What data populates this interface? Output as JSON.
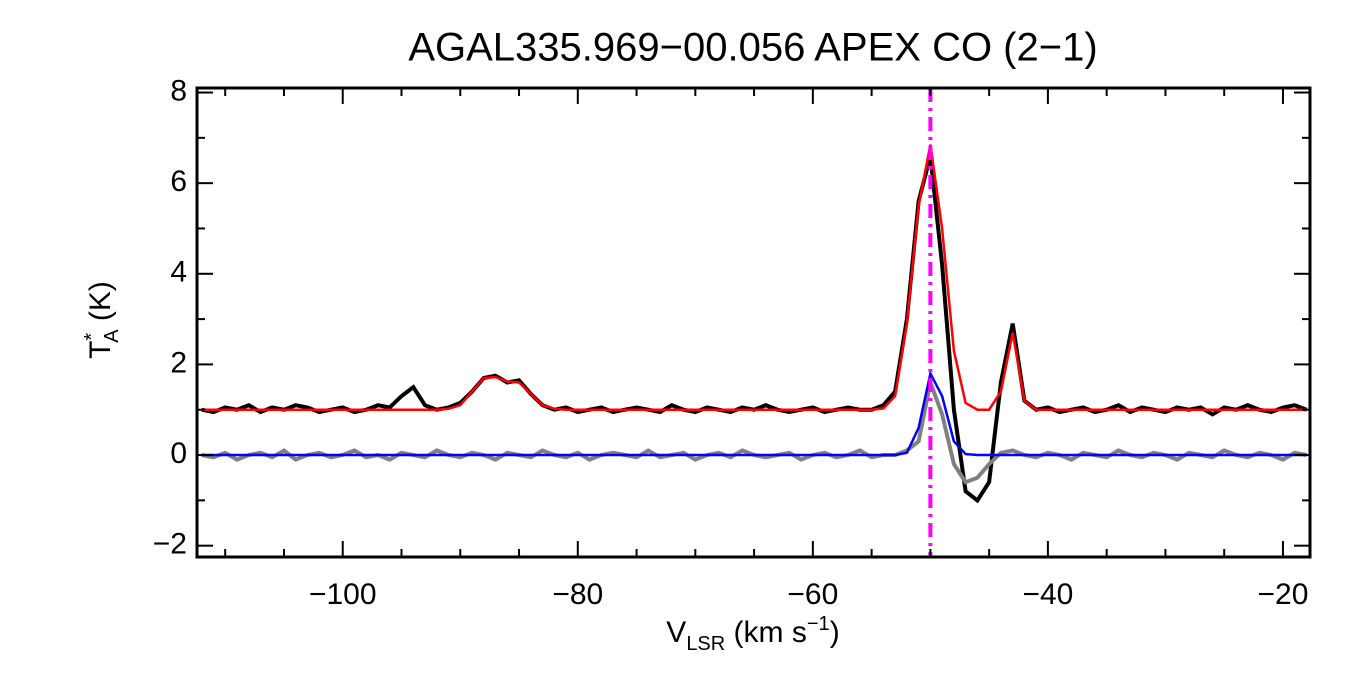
{
  "chart_data": {
    "type": "line",
    "title": "AGAL335.969−00.056  APEX CO (2−1)",
    "xlabel_parts": [
      "V",
      "LSR",
      " (km s",
      "−1",
      ")"
    ],
    "ylabel_parts": [
      "T",
      "*",
      "A",
      " (K)"
    ],
    "xlim": [
      -112.4,
      -17.7
    ],
    "ylim": [
      -2.25,
      8.1
    ],
    "xticks": [
      {
        "value": -100,
        "label": "−100"
      },
      {
        "value": -80,
        "label": "−80"
      },
      {
        "value": -60,
        "label": "−60"
      },
      {
        "value": -40,
        "label": "−40"
      },
      {
        "value": -20,
        "label": "−20"
      }
    ],
    "yticks": [
      {
        "value": -2,
        "label": "−2"
      },
      0,
      2,
      4,
      6,
      8
    ],
    "x": [
      -112,
      -111,
      -110,
      -109,
      -108,
      -107,
      -106,
      -105,
      -104,
      -103,
      -102,
      -101,
      -100,
      -99,
      -98,
      -97,
      -96,
      -95,
      -94,
      -93,
      -92,
      -91,
      -90,
      -89,
      -88,
      -87,
      -86,
      -85,
      -84,
      -83,
      -82,
      -81,
      -80,
      -79,
      -78,
      -77,
      -76,
      -75,
      -74,
      -73,
      -72,
      -71,
      -70,
      -69,
      -68,
      -67,
      -66,
      -65,
      -64,
      -63,
      -62,
      -61,
      -60,
      -59,
      -58,
      -57,
      -56,
      -55,
      -54,
      -53,
      -52,
      -51,
      -50,
      -49,
      -48,
      -47,
      -46,
      -45,
      -44,
      -43,
      -42,
      -41,
      -40,
      -39,
      -38,
      -37,
      -36,
      -35,
      -34,
      -33,
      -32,
      -31,
      -30,
      -29,
      -28,
      -27,
      -26,
      -25,
      -24,
      -23,
      -22,
      -21,
      -20,
      -19,
      -18
    ],
    "series": [
      {
        "color": "#000000",
        "values": [
          1.0,
          0.95,
          1.05,
          1.0,
          1.1,
          0.95,
          1.05,
          1.0,
          1.1,
          1.05,
          0.95,
          1.0,
          1.05,
          0.95,
          1.0,
          1.1,
          1.05,
          1.3,
          1.5,
          1.1,
          1.0,
          1.05,
          1.15,
          1.4,
          1.7,
          1.75,
          1.6,
          1.65,
          1.35,
          1.1,
          1.0,
          1.05,
          0.95,
          1.0,
          1.05,
          0.95,
          1.0,
          1.05,
          1.0,
          0.95,
          1.1,
          1.0,
          0.95,
          1.05,
          1.0,
          0.95,
          1.05,
          1.0,
          1.1,
          1.0,
          0.95,
          1.0,
          1.05,
          0.95,
          1.0,
          1.05,
          1.0,
          1.0,
          1.1,
          1.4,
          3.0,
          5.6,
          6.6,
          4.2,
          1.0,
          -0.8,
          -1.0,
          -0.6,
          1.6,
          2.9,
          1.2,
          1.0,
          1.05,
          0.95,
          1.0,
          1.05,
          0.95,
          1.0,
          1.1,
          0.95,
          1.05,
          1.0,
          0.95,
          1.05,
          1.0,
          1.05,
          0.9,
          1.05,
          1.0,
          1.1,
          1.0,
          0.95,
          1.05,
          1.1,
          1.0
        ]
      },
      {
        "color": "#808080",
        "values": [
          0.0,
          -0.05,
          0.05,
          -0.1,
          0.0,
          0.05,
          -0.05,
          0.1,
          -0.1,
          0.0,
          0.05,
          -0.05,
          0.0,
          0.1,
          -0.05,
          0.0,
          -0.1,
          0.05,
          0.0,
          -0.05,
          0.1,
          0.0,
          -0.05,
          0.05,
          0.0,
          -0.1,
          0.05,
          0.0,
          -0.05,
          0.1,
          0.0,
          -0.05,
          0.05,
          -0.1,
          0.0,
          0.05,
          0.0,
          -0.05,
          0.1,
          -0.05,
          0.0,
          0.05,
          -0.1,
          0.0,
          0.05,
          -0.05,
          0.1,
          0.0,
          -0.05,
          0.0,
          0.05,
          -0.1,
          0.0,
          0.05,
          -0.05,
          0.0,
          0.1,
          -0.05,
          0.0,
          0.0,
          0.1,
          0.3,
          1.6,
          0.9,
          -0.2,
          -0.6,
          -0.5,
          -0.2,
          0.05,
          0.1,
          0.0,
          -0.05,
          0.05,
          0.0,
          -0.1,
          0.05,
          0.0,
          -0.05,
          0.1,
          0.0,
          -0.05,
          0.05,
          0.0,
          -0.1,
          0.05,
          0.0,
          -0.05,
          0.1,
          0.0,
          -0.05,
          0.05,
          0.0,
          -0.1,
          0.05,
          0.0
        ]
      },
      {
        "color": "#ff0000",
        "values": [
          1.0,
          1.0,
          1.0,
          1.0,
          1.0,
          1.0,
          1.0,
          1.0,
          1.0,
          1.0,
          1.0,
          1.0,
          1.0,
          1.0,
          1.0,
          1.0,
          1.0,
          1.0,
          1.0,
          1.0,
          1.0,
          1.02,
          1.1,
          1.4,
          1.7,
          1.72,
          1.62,
          1.6,
          1.35,
          1.1,
          1.02,
          1.0,
          1.0,
          1.0,
          1.0,
          1.0,
          1.0,
          1.0,
          1.0,
          1.0,
          1.0,
          1.0,
          1.0,
          1.0,
          1.0,
          1.0,
          1.0,
          1.0,
          1.0,
          1.0,
          1.0,
          1.0,
          1.0,
          1.0,
          1.0,
          1.0,
          1.0,
          1.0,
          1.03,
          1.3,
          2.9,
          5.5,
          6.85,
          5.0,
          2.3,
          1.15,
          1.0,
          1.0,
          1.4,
          2.7,
          1.2,
          1.0,
          1.0,
          1.0,
          1.0,
          1.0,
          1.0,
          1.0,
          1.0,
          1.0,
          1.0,
          1.0,
          1.0,
          1.0,
          1.0,
          1.0,
          1.0,
          1.0,
          1.0,
          1.0,
          1.0,
          1.0,
          1.0,
          1.0,
          1.0
        ]
      },
      {
        "color": "#0000ff",
        "values": [
          0,
          0,
          0,
          0,
          0,
          0,
          0,
          0,
          0,
          0,
          0,
          0,
          0,
          0,
          0,
          0,
          0,
          0,
          0,
          0,
          0,
          0,
          0,
          0,
          0,
          0,
          0,
          0,
          0,
          0,
          0,
          0,
          0,
          0,
          0,
          0,
          0,
          0,
          0,
          0,
          0,
          0,
          0,
          0,
          0,
          0,
          0,
          0,
          0,
          0,
          0,
          0,
          0,
          0,
          0,
          0,
          0,
          0,
          0,
          0,
          0.05,
          0.6,
          1.8,
          1.3,
          0.3,
          0.02,
          0,
          0,
          0,
          0,
          0,
          0,
          0,
          0,
          0,
          0,
          0,
          0,
          0,
          0,
          0,
          0,
          0,
          0,
          0,
          0,
          0,
          0,
          0,
          0,
          0,
          0,
          0,
          0,
          0
        ]
      }
    ],
    "vline": {
      "x": -50,
      "color": "#ff00ff"
    }
  }
}
